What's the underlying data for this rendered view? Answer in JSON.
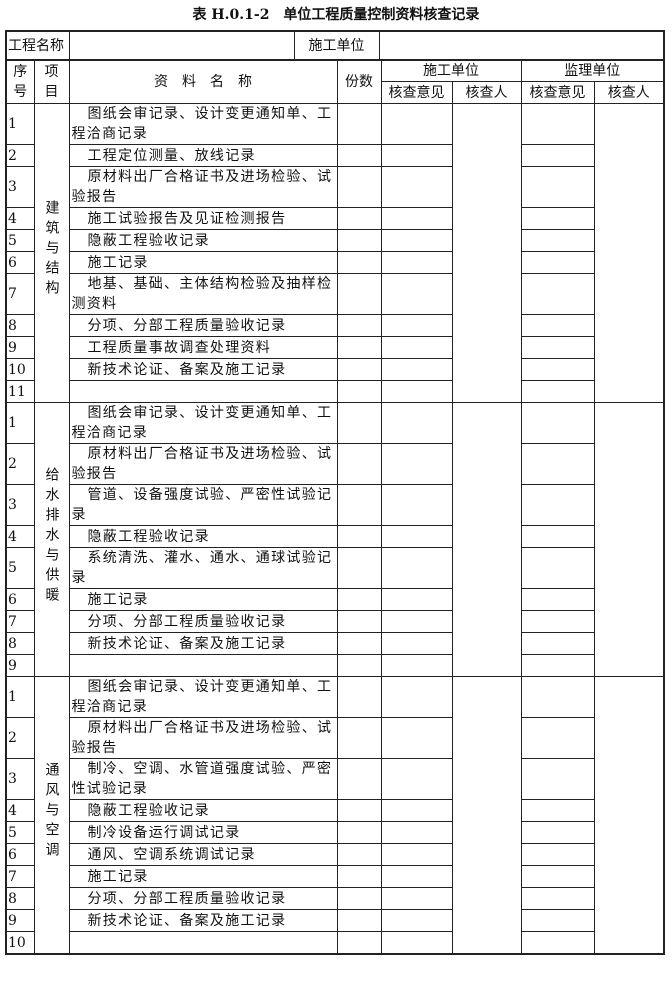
{
  "title": "表 H.0.1-2　单位工程质量控制资料核查记录",
  "header": {
    "project_name_label": "工程名称",
    "construction_unit_label": "施工单位"
  },
  "columns": {
    "seq": "序号",
    "item": "项目",
    "name": "资　料　名　称",
    "count": "份数",
    "construction": "施工单位",
    "supervision": "监理单位",
    "opinion": "核查意见",
    "checker": "核查人",
    "opinion2": "核查意见",
    "checker2": "核查人"
  },
  "sections": [
    {
      "category": "建筑与结构",
      "items": [
        {
          "no": "1",
          "name": "图纸会审记录、设计变更通知单、工程洽商记录"
        },
        {
          "no": "2",
          "name": "工程定位测量、放线记录"
        },
        {
          "no": "3",
          "name": "原材料出厂合格证书及进场检验、试验报告"
        },
        {
          "no": "4",
          "name": "施工试验报告及见证检测报告"
        },
        {
          "no": "5",
          "name": "隐蔽工程验收记录"
        },
        {
          "no": "6",
          "name": "施工记录"
        },
        {
          "no": "7",
          "name": "地基、基础、主体结构检验及抽样检测资料"
        },
        {
          "no": "8",
          "name": "分项、分部工程质量验收记录"
        },
        {
          "no": "9",
          "name": "工程质量事故调查处理资料"
        },
        {
          "no": "10",
          "name": "新技术论证、备案及施工记录"
        },
        {
          "no": "11"
        }
      ]
    },
    {
      "category": "给水排水与供暖",
      "items": [
        {
          "no": "1",
          "name": "图纸会审记录、设计变更通知单、工程洽商记录"
        },
        {
          "no": "2",
          "name": "原材料出厂合格证书及进场检验、试验报告"
        },
        {
          "no": "3",
          "name": "管道、设备强度试验、严密性试验记录"
        },
        {
          "no": "4",
          "name": "隐蔽工程验收记录"
        },
        {
          "no": "5",
          "name": "系统清洗、灌水、通水、通球试验记录"
        },
        {
          "no": "6",
          "name": "施工记录"
        },
        {
          "no": "7",
          "name": "分项、分部工程质量验收记录"
        },
        {
          "no": "8",
          "name": "新技术论证、备案及施工记录"
        },
        {
          "no": "9"
        }
      ]
    },
    {
      "category": "通风与空调",
      "items": [
        {
          "no": "1",
          "name": "图纸会审记录、设计变更通知单、工程洽商记录"
        },
        {
          "no": "2",
          "name": "原材料出厂合格证书及进场检验、试验报告"
        },
        {
          "no": "3",
          "name": "制冷、空调、水管道强度试验、严密性试验记录"
        },
        {
          "no": "4",
          "name": "隐蔽工程验收记录"
        },
        {
          "no": "5",
          "name": "制冷设备运行调试记录"
        },
        {
          "no": "6",
          "name": "通风、空调系统调试记录"
        },
        {
          "no": "7",
          "name": "施工记录"
        },
        {
          "no": "8",
          "name": "分项、分部工程质量验收记录"
        },
        {
          "no": "9",
          "name": "新技术论证、备案及施工记录"
        },
        {
          "no": "10"
        }
      ]
    }
  ]
}
